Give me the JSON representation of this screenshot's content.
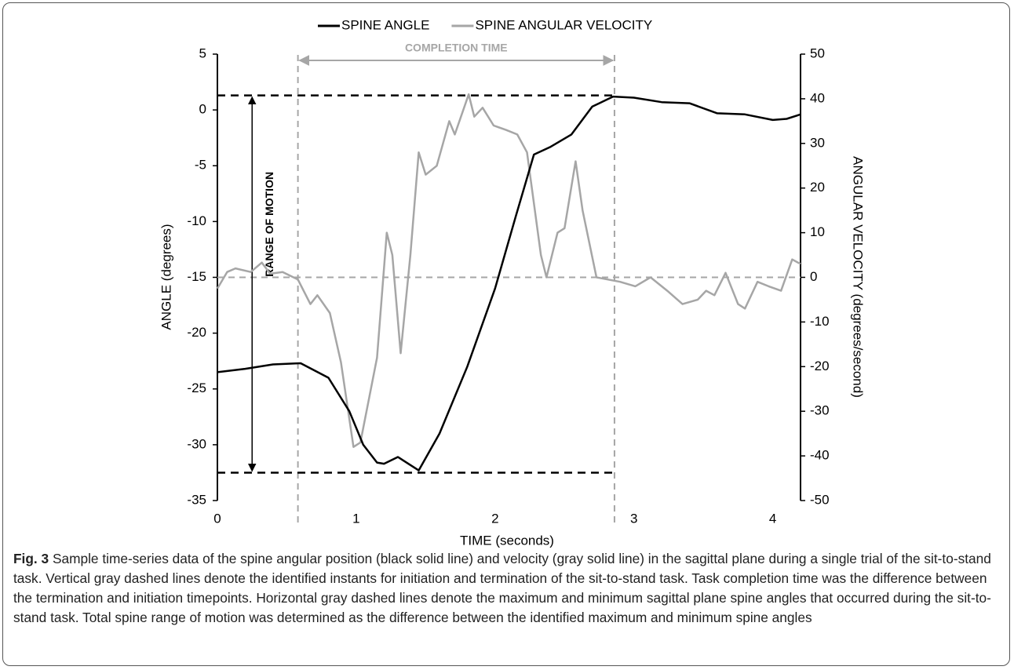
{
  "chart_data": {
    "type": "line",
    "xlabel": "TIME (seconds)",
    "ylabel": "ANGLE (degrees)",
    "y2label": "ANGULAR VELOCITY (degrees/second)",
    "xlim": [
      0,
      4.2
    ],
    "xticks": [
      0,
      1,
      2,
      3,
      4
    ],
    "ylim": [
      -35,
      5
    ],
    "yticks": [
      -35,
      -30,
      -25,
      -20,
      -15,
      -10,
      -5,
      0,
      5
    ],
    "y2lim": [
      -50,
      50
    ],
    "y2ticks": [
      -50,
      -40,
      -30,
      -20,
      -10,
      0,
      10,
      20,
      30,
      40,
      50
    ],
    "legend": "top",
    "series": [
      {
        "name": "SPINE ANGLE",
        "color": "#000000",
        "x": [
          0,
          0.2,
          0.4,
          0.6,
          0.8,
          0.95,
          1.05,
          1.15,
          1.2,
          1.3,
          1.35,
          1.45,
          1.6,
          1.8,
          2.0,
          2.15,
          2.28,
          2.4,
          2.55,
          2.7,
          2.85,
          3.0,
          3.2,
          3.4,
          3.6,
          3.8,
          4.0,
          4.1,
          4.2
        ],
        "values": [
          -23.5,
          -23.2,
          -22.8,
          -22.7,
          -24,
          -27,
          -30,
          -31.6,
          -31.7,
          -31.1,
          -31.5,
          -32.3,
          -29,
          -23,
          -16,
          -9.5,
          -4,
          -3.3,
          -2.2,
          0.3,
          1.2,
          1.1,
          0.7,
          0.6,
          -0.3,
          -0.4,
          -0.9,
          -0.8,
          -0.4
        ]
      },
      {
        "name": "SPINE ANGULAR VELOCITY",
        "color": "#a6a6a6",
        "axis": "y2",
        "x": [
          0,
          0.07,
          0.13,
          0.24,
          0.32,
          0.38,
          0.47,
          0.58,
          0.67,
          0.72,
          0.81,
          0.89,
          0.98,
          1.03,
          1.15,
          1.22,
          1.26,
          1.32,
          1.39,
          1.45,
          1.5,
          1.58,
          1.67,
          1.71,
          1.81,
          1.85,
          1.91,
          1.99,
          2.08,
          2.16,
          2.23,
          2.33,
          2.37,
          2.45,
          2.5,
          2.58,
          2.63,
          2.73,
          2.9,
          3.01,
          3.12,
          3.24,
          3.35,
          3.46,
          3.52,
          3.58,
          3.66,
          3.75,
          3.8,
          3.89,
          3.97,
          4.06,
          4.14,
          4.2
        ],
        "values": [
          -2.5,
          1.2,
          2,
          1.2,
          3.3,
          0.8,
          1.2,
          -0.5,
          -6,
          -4,
          -8,
          -19,
          -38,
          -37,
          -18,
          10,
          5,
          -17,
          5,
          28,
          23,
          25,
          35,
          32,
          41,
          36,
          38,
          34,
          33,
          32,
          28,
          5,
          0,
          10,
          11,
          26,
          15,
          0,
          -1,
          -2,
          0,
          -3,
          -6,
          -5,
          -3,
          -4,
          1,
          -6,
          -7,
          -1,
          -2,
          -3,
          4,
          3
        ]
      }
    ],
    "annotations": {
      "completion_time": {
        "label": "COMPLETION TIME",
        "start": 0.58,
        "end": 2.86
      },
      "range_of_motion": {
        "label": "RANGE OF MOTION",
        "max": 1.3,
        "min": -32.5,
        "at": 0.25
      },
      "velocity_reference": 0
    },
    "caption_label": "Fig. 3",
    "caption": "Sample time-series data of the spine angular position (black solid line) and velocity (gray solid line) in the sagittal plane during a single trial of the sit-to-stand task. Vertical gray dashed lines denote the identified instants for initiation and termination of the sit-to-stand task. Task completion time was the difference between the termination and initiation timepoints. Horizontal gray dashed lines denote the maximum and minimum sagittal plane spine angles that occurred during the sit-to-stand task. Total spine range of motion was determined as the difference between the identified maximum and minimum spine angles"
  }
}
